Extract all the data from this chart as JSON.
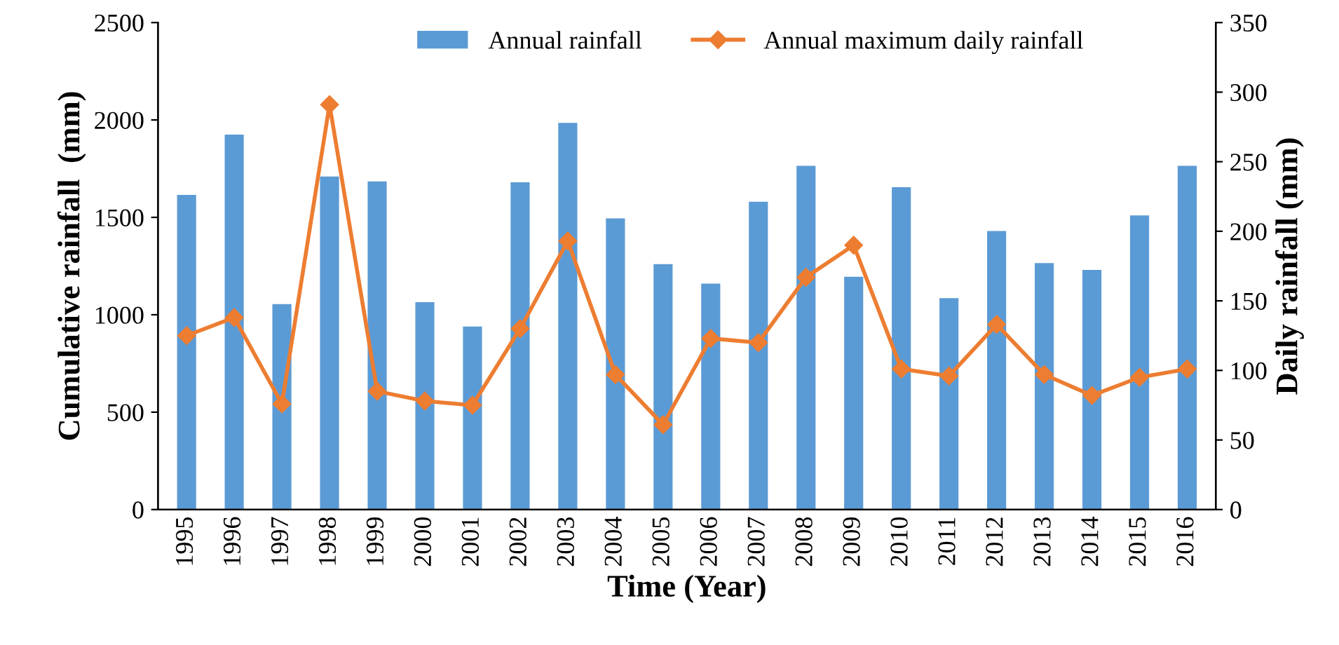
{
  "chart_data": {
    "type": "bar",
    "xlabel": "Time (Year)",
    "ylabel": "Cumulative rainfall  (mm)",
    "y2label": "Daily rainfall (mm)",
    "categories": [
      "1995",
      "1996",
      "1997",
      "1998",
      "1999",
      "2000",
      "2001",
      "2002",
      "2003",
      "2004",
      "2005",
      "2006",
      "2007",
      "2008",
      "2009",
      "2010",
      "2011",
      "2012",
      "2013",
      "2014",
      "2015",
      "2016"
    ],
    "series": [
      {
        "name": "Annual rainfall",
        "color": "#5b9bd5",
        "values": [
          1615,
          1925,
          1055,
          1710,
          1685,
          1065,
          940,
          1680,
          1985,
          1495,
          1260,
          1160,
          1580,
          1765,
          1195,
          1655,
          1085,
          1430,
          1265,
          1230,
          1510,
          1765
        ]
      },
      {
        "name": "Annual maximum daily rainfall",
        "type": "line",
        "axis": "y2",
        "color": "#ed7d31",
        "marker": "diamond",
        "values": [
          125,
          138,
          76,
          291,
          85,
          78,
          75,
          130,
          193,
          97,
          61,
          123,
          120,
          167,
          190,
          101,
          96,
          133,
          97,
          82,
          95,
          101
        ]
      }
    ],
    "ylim": [
      0,
      2500
    ],
    "yticks": [
      0,
      500,
      1000,
      1500,
      2000,
      2500
    ],
    "y2lim": [
      0,
      350
    ],
    "y2ticks": [
      0,
      50,
      100,
      150,
      200,
      250,
      300,
      350
    ],
    "grid": false,
    "legend": "top"
  }
}
